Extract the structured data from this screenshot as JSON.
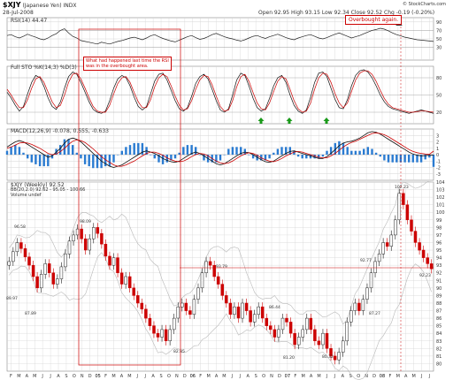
{
  "header": {
    "symbol": "$XJY",
    "name": "(Japanese Yen) INDX",
    "date": "28-Jul-2008",
    "open": "Open 92.95",
    "high": "High 93.15",
    "low": "Low 92.34",
    "close": "Close 92.52",
    "chg": "Chg -0.19 (-0.20%)",
    "credit": "© StockCharts.com"
  },
  "annotations": {
    "rsi_note": [
      "What had happened last time the RSI",
      "was in the overbought area."
    ],
    "overbought": "Overbought again."
  },
  "colors": {
    "up": "#222222",
    "down": "#cc0000",
    "grid": "#d6d6d6",
    "histogram": "#2a7bd1",
    "signal": "#cc0000",
    "annotation": "#cc0000",
    "arrow": "#1a9a1a",
    "highlight_box": "#cc0000"
  },
  "chart_data": [
    {
      "type": "line",
      "panel": "RSI",
      "title": "RSI(14) 44.47",
      "ylim": [
        0,
        100
      ],
      "yticks": [
        30,
        50,
        70,
        90
      ],
      "values": [
        58,
        60,
        55,
        52,
        56,
        61,
        57,
        54,
        50,
        48,
        52,
        58,
        62,
        70,
        74,
        64,
        56,
        52,
        46,
        44,
        42,
        40,
        38,
        42,
        40,
        38,
        41,
        44,
        46,
        49,
        52,
        54,
        51,
        48,
        52,
        57,
        60,
        55,
        51,
        48,
        45,
        43,
        47,
        51,
        55,
        58,
        53,
        49,
        51,
        55,
        60,
        63,
        59,
        55,
        52,
        50,
        47,
        45,
        48,
        52,
        56,
        58,
        54,
        51,
        55,
        58,
        61,
        57,
        53,
        50,
        48,
        52,
        55,
        58,
        60,
        56,
        52,
        50,
        53,
        57,
        61,
        64,
        60,
        56,
        52,
        55,
        58,
        62,
        66,
        70,
        72,
        75,
        73,
        69,
        64,
        60,
        57,
        54,
        52,
        50,
        48,
        47,
        46,
        45,
        44
      ]
    },
    {
      "type": "line",
      "panel": "STO",
      "title": "Full STO %K(14,3) %D(3)",
      "ylim": [
        0,
        100
      ],
      "yticks": [
        20,
        50,
        80
      ],
      "series": [
        {
          "name": "%K",
          "values": [
            55,
            45,
            32,
            22,
            30,
            52,
            72,
            84,
            80,
            65,
            45,
            30,
            25,
            38,
            62,
            82,
            90,
            86,
            72,
            55,
            38,
            25,
            20,
            18,
            22,
            40,
            62,
            78,
            84,
            80,
            66,
            46,
            30,
            24,
            30,
            52,
            74,
            86,
            88,
            76,
            58,
            40,
            26,
            22,
            28,
            48,
            70,
            82,
            86,
            78,
            60,
            40,
            24,
            20,
            26,
            50,
            76,
            88,
            84,
            66,
            44,
            28,
            22,
            26,
            44,
            66,
            80,
            84,
            72,
            50,
            32,
            22,
            18,
            24,
            46,
            72,
            88,
            90,
            82,
            62,
            42,
            28,
            26,
            42,
            66,
            84,
            92,
            94,
            90,
            80,
            66,
            50,
            38,
            30,
            26,
            24,
            22,
            20,
            18,
            20,
            22,
            24,
            22,
            20,
            18
          ]
        },
        {
          "name": "%D",
          "values": [
            60,
            50,
            38,
            28,
            28,
            42,
            62,
            78,
            82,
            72,
            55,
            38,
            28,
            32,
            50,
            72,
            86,
            88,
            78,
            62,
            45,
            30,
            22,
            20,
            20,
            32,
            52,
            70,
            80,
            82,
            72,
            54,
            38,
            28,
            28,
            42,
            64,
            80,
            86,
            82,
            66,
            48,
            32,
            24,
            26,
            40,
            60,
            76,
            84,
            82,
            68,
            48,
            30,
            22,
            24,
            40,
            64,
            82,
            86,
            74,
            54,
            36,
            26,
            24,
            36,
            56,
            74,
            82,
            78,
            60,
            40,
            26,
            20,
            22,
            36,
            60,
            80,
            88,
            86,
            72,
            52,
            36,
            28,
            36,
            56,
            76,
            88,
            92,
            92,
            86,
            74,
            58,
            44,
            34,
            28,
            26,
            24,
            22,
            20,
            20,
            21,
            22,
            22,
            21,
            20
          ]
        }
      ]
    },
    {
      "type": "line",
      "panel": "MACD",
      "title": "MACD(12,26,9) -0.078, 0.555, -0.633",
      "ylim": [
        -4,
        4
      ],
      "yticks": [
        -3,
        -2,
        -1,
        0,
        1,
        2,
        3
      ],
      "series": [
        {
          "name": "MACD",
          "values": [
            1.2,
            1.6,
            2.0,
            2.2,
            2.0,
            1.6,
            1.2,
            0.8,
            0.4,
            0.0,
            -0.4,
            -0.2,
            0.4,
            1.0,
            1.8,
            2.4,
            2.6,
            2.4,
            2.0,
            1.4,
            0.8,
            0.2,
            -0.4,
            -1.0,
            -1.4,
            -1.8,
            -2.0,
            -1.8,
            -1.6,
            -1.2,
            -0.8,
            -0.4,
            0.0,
            0.4,
            0.6,
            0.4,
            0.2,
            -0.2,
            -0.6,
            -0.9,
            -1.1,
            -1.2,
            -1.0,
            -0.6,
            -0.2,
            0.2,
            0.4,
            0.2,
            -0.2,
            -0.6,
            -1.0,
            -1.4,
            -1.6,
            -1.4,
            -1.0,
            -0.6,
            -0.2,
            0.2,
            0.4,
            0.3,
            0.0,
            -0.4,
            -0.8,
            -1.1,
            -1.2,
            -1.0,
            -0.6,
            -0.2,
            0.2,
            0.5,
            0.6,
            0.4,
            0.2,
            0.0,
            -0.2,
            -0.4,
            -0.6,
            -0.6,
            -0.3,
            0.2,
            0.8,
            1.4,
            1.8,
            2.0,
            2.1,
            2.3,
            2.6,
            3.0,
            3.4,
            3.6,
            3.5,
            3.2,
            2.8,
            2.4,
            2.0,
            1.6,
            1.2,
            0.8,
            0.4,
            0.1,
            -0.1,
            -0.2,
            -0.15,
            -0.1,
            -0.078
          ]
        },
        {
          "name": "Signal",
          "values": [
            1.0,
            1.2,
            1.5,
            1.8,
            1.9,
            1.8,
            1.6,
            1.3,
            1.0,
            0.6,
            0.2,
            0.0,
            0.1,
            0.5,
            1.0,
            1.6,
            2.1,
            2.3,
            2.2,
            1.9,
            1.4,
            0.9,
            0.3,
            -0.3,
            -0.8,
            -1.2,
            -1.6,
            -1.8,
            -1.8,
            -1.6,
            -1.3,
            -1.0,
            -0.6,
            -0.2,
            0.2,
            0.4,
            0.4,
            0.2,
            -0.1,
            -0.5,
            -0.8,
            -1.0,
            -1.1,
            -1.0,
            -0.7,
            -0.3,
            0.0,
            0.2,
            0.1,
            -0.2,
            -0.6,
            -1.0,
            -1.3,
            -1.4,
            -1.3,
            -1.0,
            -0.6,
            -0.2,
            0.1,
            0.3,
            0.2,
            -0.1,
            -0.5,
            -0.8,
            -1.0,
            -1.1,
            -0.9,
            -0.6,
            -0.2,
            0.1,
            0.4,
            0.5,
            0.4,
            0.2,
            0.0,
            -0.2,
            -0.4,
            -0.5,
            -0.5,
            -0.2,
            0.2,
            0.7,
            1.2,
            1.6,
            1.9,
            2.1,
            2.4,
            2.7,
            3.0,
            3.3,
            3.4,
            3.3,
            3.1,
            2.8,
            2.4,
            2.0,
            1.6,
            1.2,
            0.8,
            0.5,
            0.3,
            0.2,
            0.1,
            0.05,
            0.555
          ]
        }
      ]
    },
    {
      "type": "candlestick",
      "panel": "Price",
      "title": "$XJY (Weekly) 92.52",
      "subtitle": "BB(20,2.0) 92.62 - 95.05 - 100.66",
      "legend": "Volume undef",
      "ylim": [
        79,
        104
      ],
      "yticks": [
        80,
        81,
        82,
        83,
        84,
        85,
        86,
        87,
        88,
        89,
        90,
        91,
        92,
        93,
        94,
        95,
        96,
        97,
        98,
        99,
        100,
        101,
        102,
        103,
        104
      ],
      "price_labels": [
        "96.58",
        "89.97",
        "87.89",
        "98.09",
        "93.79",
        "82.85",
        "86.44",
        "81.20",
        "80.32",
        "92.77",
        "87.27",
        "102.23",
        "92.23"
      ],
      "x_labels": [
        "F",
        "M",
        "A",
        "M",
        "J",
        "J",
        "A",
        "S",
        "O",
        "N",
        "D",
        "05",
        "F",
        "M",
        "A",
        "M",
        "J",
        "J",
        "A",
        "S",
        "O",
        "N",
        "D",
        "06",
        "F",
        "M",
        "A",
        "M",
        "J",
        "J",
        "A",
        "S",
        "O",
        "N",
        "D",
        "07",
        "F",
        "M",
        "A",
        "M",
        "J",
        "J",
        "A",
        "S",
        "O",
        "N",
        "D",
        "08",
        "F",
        "M",
        "A",
        "M",
        "J",
        "J"
      ],
      "close": [
        93.5,
        94.8,
        96.0,
        95.2,
        94.1,
        93.0,
        91.5,
        90.0,
        91.8,
        93.2,
        92.0,
        90.5,
        91.2,
        92.8,
        94.5,
        96.2,
        97.0,
        97.8,
        96.5,
        95.0,
        96.5,
        98.0,
        97.2,
        95.8,
        94.2,
        93.0,
        94.0,
        92.0,
        90.5,
        91.5,
        90.0,
        89.0,
        88.0,
        87.2,
        86.0,
        85.0,
        84.0,
        83.5,
        84.5,
        83.0,
        84.5,
        86.0,
        87.5,
        88.0,
        87.0,
        86.5,
        88.5,
        90.0,
        92.0,
        93.5,
        93.0,
        91.5,
        90.5,
        89.0,
        88.0,
        86.5,
        87.5,
        86.0,
        88.0,
        87.0,
        85.5,
        86.5,
        87.5,
        86.0,
        85.0,
        84.5,
        83.5,
        84.5,
        86.0,
        85.5,
        84.0,
        82.5,
        83.5,
        84.5,
        86.0,
        84.5,
        83.0,
        82.5,
        84.0,
        82.0,
        81.0,
        80.5,
        81.5,
        83.0,
        85.5,
        87.0,
        88.0,
        87.0,
        88.5,
        90.0,
        92.0,
        93.5,
        94.5,
        96.0,
        95.5,
        97.0,
        99.0,
        102.5,
        101.0,
        99.0,
        97.5,
        96.0,
        95.0,
        94.0,
        93.2,
        92.52
      ]
    }
  ]
}
